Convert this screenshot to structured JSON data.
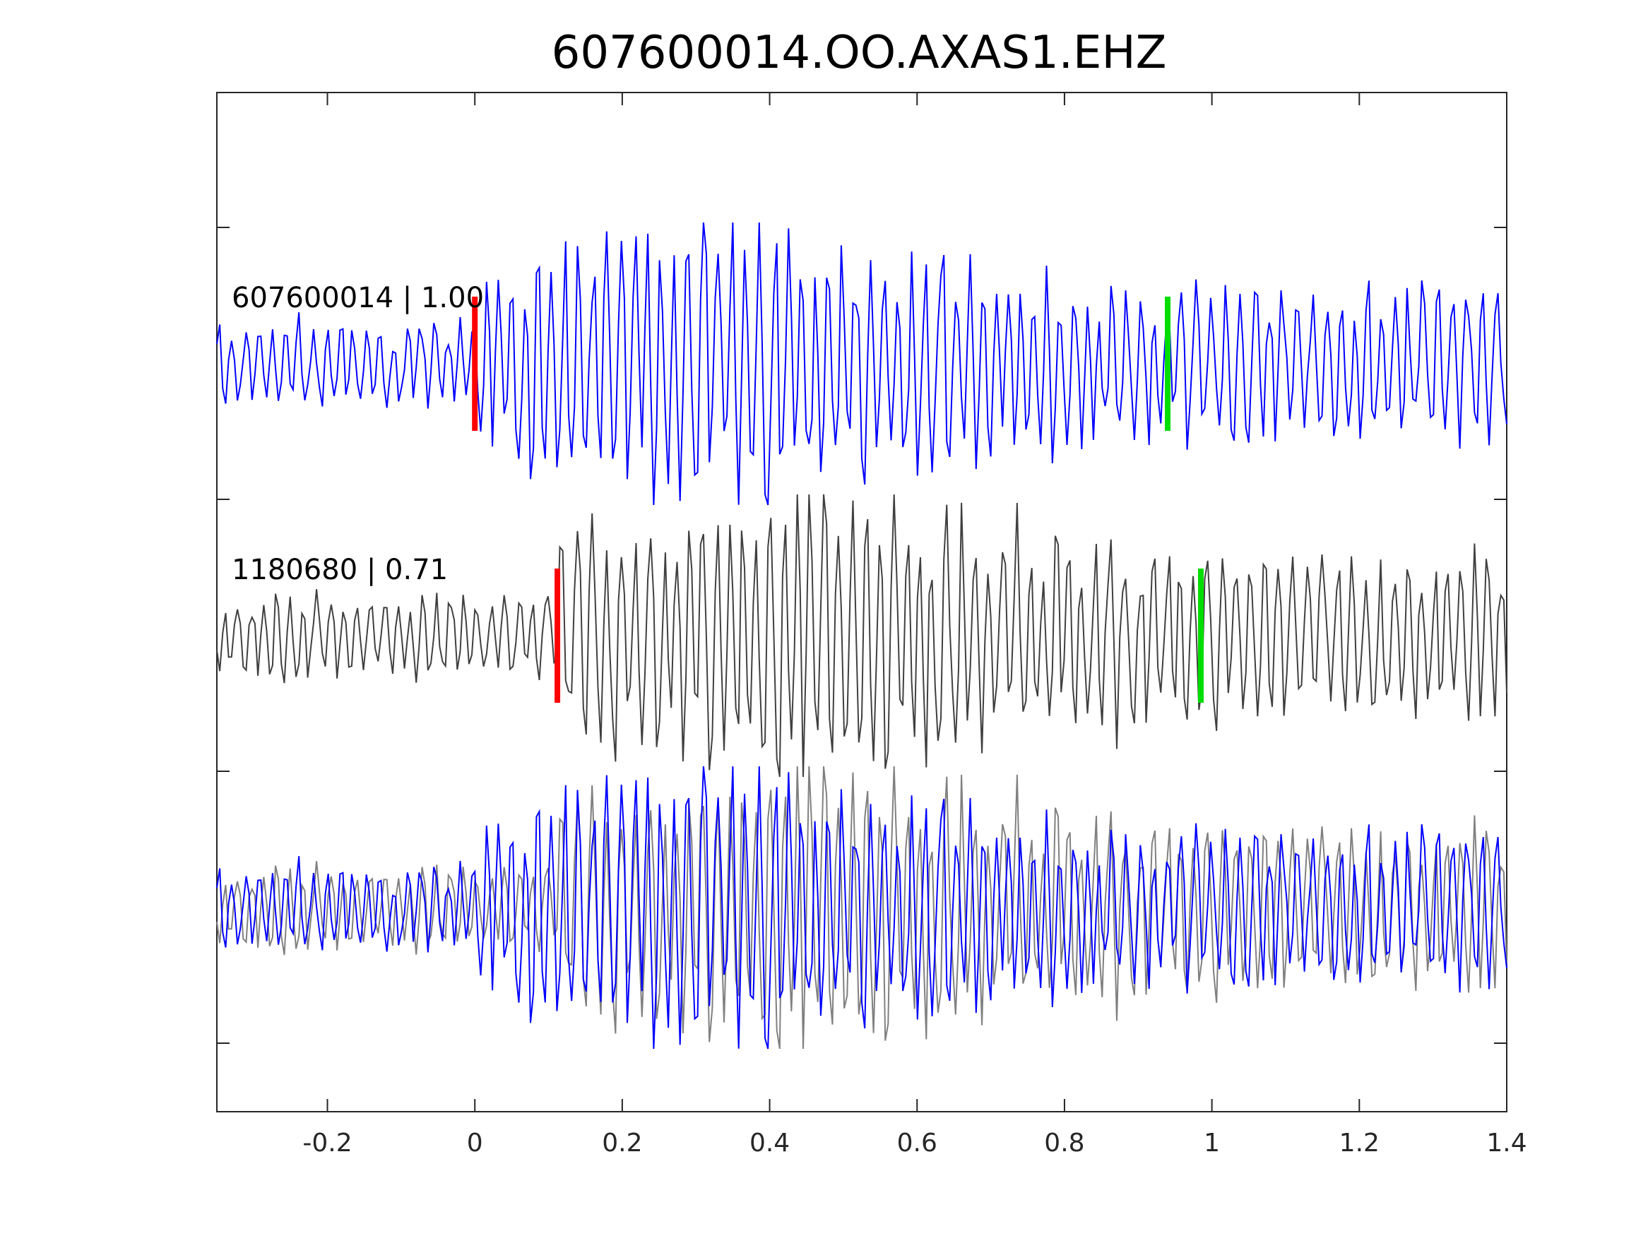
{
  "chart_data": {
    "type": "line",
    "title": "607600014.OO.AXAS1.EHZ",
    "xlabel": "",
    "ylabel": "",
    "xlim": [
      -0.35,
      1.4
    ],
    "x_ticks": [
      -0.2,
      0,
      0.2,
      0.4,
      0.6,
      0.8,
      1,
      1.2,
      1.4
    ],
    "x_tick_labels": [
      "-0.2",
      "0",
      "0.2",
      "0.4",
      "0.6",
      "0.8",
      "1",
      "1.2",
      "1.4"
    ],
    "grid": false,
    "colors": {
      "trace1": "#0000ff",
      "trace2": "#404040",
      "overlay_gray": "#808080",
      "p_pick": "#ff0000",
      "s_pick": "#00dd00",
      "axes": "#262626"
    },
    "panels": [
      {
        "label": "607600014 | 1.00",
        "series": [
          {
            "color": "#0000ff",
            "seed": 7
          }
        ],
        "p_pick": 0.0,
        "s_pick": 0.94
      },
      {
        "label": "1180680 | 0.71",
        "series": [
          {
            "color": "#404040",
            "seed": 13
          }
        ],
        "p_pick": 0.112,
        "s_pick": 0.985
      },
      {
        "label": "",
        "series": [
          {
            "color": "#808080",
            "seed": 13
          },
          {
            "color": "#0000ff",
            "seed": 7
          }
        ]
      }
    ]
  }
}
